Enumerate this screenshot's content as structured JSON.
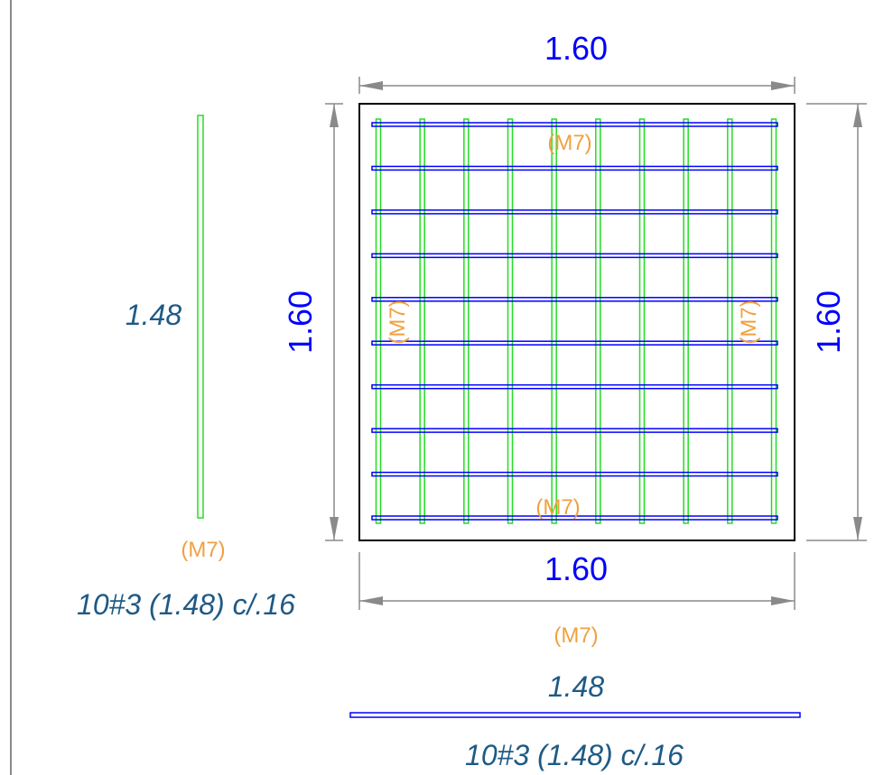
{
  "colors": {
    "background": "#ffffff",
    "outline": "#000000",
    "dimension_line": "#8a8a8a",
    "dimension_text": "#0000ff",
    "bar_green": "#22dd22",
    "bar_blue": "#0000ff",
    "bar_label": "#1e5a85",
    "mark_label": "#f0a040"
  },
  "slab": {
    "width_dimension": "1.60",
    "height_dimension": "1.60",
    "bottom_dimension": "1.60",
    "right_dimension": "1.60",
    "vertical_bar_count": 10,
    "horizontal_bar_count": 10
  },
  "marks": {
    "top": "(M7)",
    "bottom": "(M7)",
    "left": "(M7)",
    "right": "(M7)"
  },
  "vertical_bar_detail": {
    "length_label": "1.48",
    "mark": "(M7)",
    "spec": "10#3 (1.48) c/.16"
  },
  "horizontal_bar_detail": {
    "mark": "(M7)",
    "length_label": "1.48",
    "spec": "10#3 (1.48) c/.16"
  }
}
